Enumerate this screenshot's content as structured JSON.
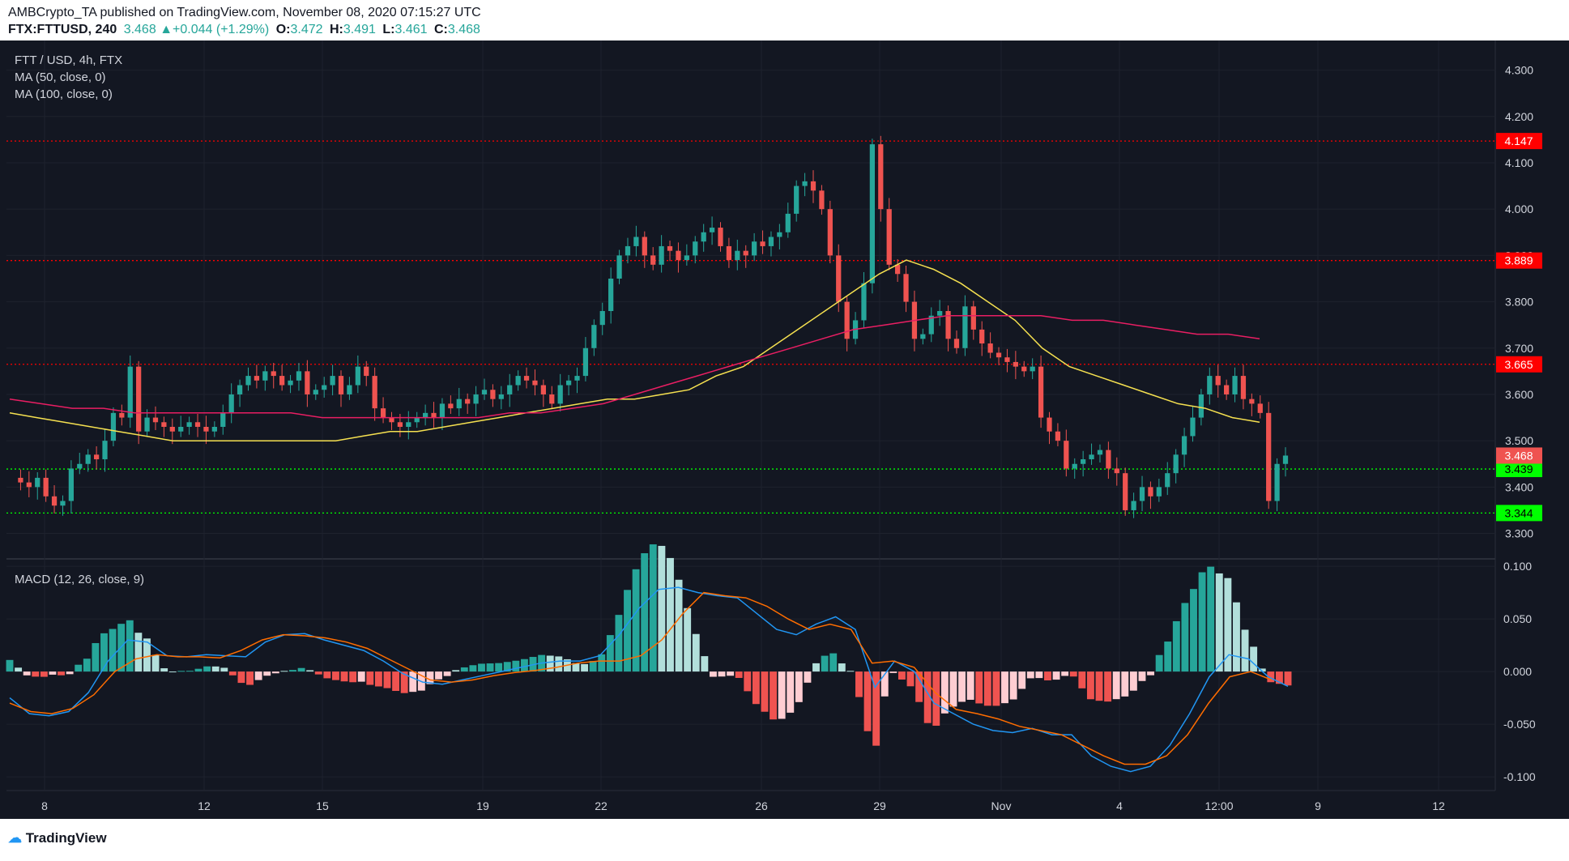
{
  "header": {
    "publisher_line": "AMBCrypto_TA published on TradingView.com, November 08, 2020 07:15:27 UTC",
    "symbol": "FTX:FTTUSD, 240",
    "last": "3.468",
    "change": "+0.044 (+1.29%)",
    "open": "3.472",
    "high": "3.491",
    "low": "3.461",
    "close": "3.468"
  },
  "legend": {
    "title": "FTT / USD, 4h, FTX",
    "ma50": "MA (50, close, 0)",
    "ma100": "MA (100, close, 0)",
    "macd": "MACD (12, 26, close, 9)"
  },
  "footer": {
    "brand": "TradingView"
  },
  "colors": {
    "background": "#131722",
    "up": "#26a69a",
    "down": "#ef5350",
    "ma50": "#f5e050",
    "ma100": "#e91e63",
    "macd_line": "#2196f3",
    "signal_line": "#ff6d00",
    "resistance": "#ff0000",
    "support": "#00ff00"
  },
  "chart_data": [
    {
      "type": "candlestick",
      "title": "FTT / USD, 4h, FTX",
      "x_ticks": [
        "8",
        "12",
        "15",
        "19",
        "22",
        "26",
        "29",
        "Nov",
        "4",
        "12:00",
        "9",
        "12"
      ],
      "y_ticks": [
        "4.300",
        "4.200",
        "4.100",
        "4.000",
        "3.900",
        "3.800",
        "3.700",
        "3.600",
        "3.500",
        "3.400",
        "3.300"
      ],
      "ylim": [
        3.245,
        4.35
      ],
      "horizontal_levels": [
        {
          "value": 4.147,
          "label": "4.147",
          "kind": "resistance"
        },
        {
          "value": 3.889,
          "label": "3.889",
          "kind": "resistance"
        },
        {
          "value": 3.665,
          "label": "3.665",
          "kind": "resistance"
        },
        {
          "value": 3.439,
          "label": "3.439",
          "kind": "support"
        },
        {
          "value": 3.344,
          "label": "3.344",
          "kind": "support"
        }
      ],
      "last_price": {
        "value": 3.468,
        "label": "3.468"
      },
      "close_path": [
        3.42,
        3.41,
        3.4,
        3.42,
        3.38,
        3.36,
        3.37,
        3.44,
        3.45,
        3.47,
        3.46,
        3.5,
        3.56,
        3.55,
        3.66,
        3.52,
        3.55,
        3.54,
        3.53,
        3.52,
        3.53,
        3.54,
        3.53,
        3.52,
        3.53,
        3.56,
        3.6,
        3.62,
        3.64,
        3.63,
        3.65,
        3.64,
        3.62,
        3.63,
        3.65,
        3.6,
        3.61,
        3.62,
        3.64,
        3.6,
        3.62,
        3.66,
        3.64,
        3.57,
        3.55,
        3.54,
        3.53,
        3.54,
        3.55,
        3.56,
        3.55,
        3.58,
        3.57,
        3.59,
        3.58,
        3.6,
        3.61,
        3.59,
        3.6,
        3.62,
        3.64,
        3.63,
        3.62,
        3.6,
        3.58,
        3.62,
        3.63,
        3.64,
        3.7,
        3.75,
        3.78,
        3.85,
        3.9,
        3.92,
        3.94,
        3.9,
        3.88,
        3.92,
        3.91,
        3.89,
        3.9,
        3.93,
        3.95,
        3.96,
        3.92,
        3.89,
        3.91,
        3.9,
        3.93,
        3.92,
        3.94,
        3.95,
        3.99,
        4.05,
        4.06,
        4.04,
        4.0,
        3.9,
        3.8,
        3.72,
        3.76,
        3.84,
        4.14,
        4.0,
        3.88,
        3.86,
        3.8,
        3.72,
        3.73,
        3.77,
        3.78,
        3.72,
        3.7,
        3.79,
        3.74,
        3.71,
        3.69,
        3.68,
        3.67,
        3.66,
        3.65,
        3.66,
        3.55,
        3.52,
        3.5,
        3.44,
        3.45,
        3.46,
        3.47,
        3.48,
        3.44,
        3.43,
        3.35,
        3.37,
        3.4,
        3.38,
        3.4,
        3.43,
        3.47,
        3.51,
        3.55,
        3.6,
        3.64,
        3.62,
        3.6,
        3.64,
        3.59,
        3.58,
        3.56,
        3.37,
        3.45,
        3.468
      ],
      "ma50_path": [
        3.56,
        3.55,
        3.54,
        3.53,
        3.52,
        3.51,
        3.5,
        3.5,
        3.5,
        3.5,
        3.5,
        3.5,
        3.5,
        3.51,
        3.52,
        3.52,
        3.53,
        3.54,
        3.55,
        3.56,
        3.57,
        3.58,
        3.59,
        3.59,
        3.6,
        3.61,
        3.64,
        3.66,
        3.7,
        3.74,
        3.78,
        3.82,
        3.86,
        3.89,
        3.87,
        3.84,
        3.8,
        3.76,
        3.7,
        3.66,
        3.64,
        3.62,
        3.6,
        3.58,
        3.57,
        3.55,
        3.54
      ],
      "ma100_path": [
        3.59,
        3.58,
        3.57,
        3.57,
        3.56,
        3.56,
        3.56,
        3.56,
        3.56,
        3.56,
        3.55,
        3.55,
        3.55,
        3.55,
        3.55,
        3.55,
        3.56,
        3.56,
        3.57,
        3.58,
        3.6,
        3.62,
        3.64,
        3.66,
        3.68,
        3.7,
        3.72,
        3.74,
        3.75,
        3.76,
        3.77,
        3.77,
        3.77,
        3.77,
        3.76,
        3.76,
        3.75,
        3.74,
        3.73,
        3.73,
        3.72
      ],
      "ma_endpoints": {
        "ma50_last": 3.54,
        "ma100_last": 3.72
      }
    },
    {
      "type": "macd",
      "title": "MACD (12, 26, close, 9)",
      "y_ticks": [
        "0.100",
        "0.050",
        "0.000",
        "-0.050",
        "-0.100"
      ],
      "ylim": [
        -0.113,
        0.107
      ],
      "macd_path": [
        -0.025,
        -0.04,
        -0.042,
        -0.038,
        -0.02,
        0.01,
        0.03,
        0.028,
        0.015,
        0.014,
        0.016,
        0.015,
        0.014,
        0.028,
        0.035,
        0.036,
        0.03,
        0.025,
        0.02,
        0.01,
        -0.002,
        -0.01,
        -0.012,
        -0.008,
        -0.004,
        0.0,
        0.004,
        0.008,
        0.01,
        0.01,
        0.015,
        0.035,
        0.06,
        0.078,
        0.08,
        0.075,
        0.072,
        0.07,
        0.055,
        0.04,
        0.035,
        0.045,
        0.052,
        0.04,
        -0.015,
        0.01,
        0.0,
        -0.03,
        -0.04,
        -0.05,
        -0.056,
        -0.058,
        -0.054,
        -0.06,
        -0.06,
        -0.08,
        -0.09,
        -0.095,
        -0.09,
        -0.07,
        -0.04,
        -0.005,
        0.016,
        0.012,
        -0.005,
        -0.014
      ],
      "signal_path": [
        -0.03,
        -0.038,
        -0.04,
        -0.035,
        -0.022,
        0.0,
        0.012,
        0.016,
        0.014,
        0.014,
        0.013,
        0.02,
        0.03,
        0.035,
        0.034,
        0.032,
        0.028,
        0.022,
        0.012,
        0.002,
        -0.008,
        -0.01,
        -0.008,
        -0.004,
        -0.001,
        0.001,
        0.004,
        0.008,
        0.01,
        0.01,
        0.015,
        0.03,
        0.055,
        0.075,
        0.072,
        0.07,
        0.062,
        0.05,
        0.04,
        0.045,
        0.04,
        0.008,
        0.01,
        0.004,
        -0.02,
        -0.036,
        -0.04,
        -0.045,
        -0.052,
        -0.056,
        -0.06,
        -0.07,
        -0.08,
        -0.088,
        -0.088,
        -0.08,
        -0.06,
        -0.03,
        -0.005,
        0.0,
        -0.008
      ]
    }
  ]
}
